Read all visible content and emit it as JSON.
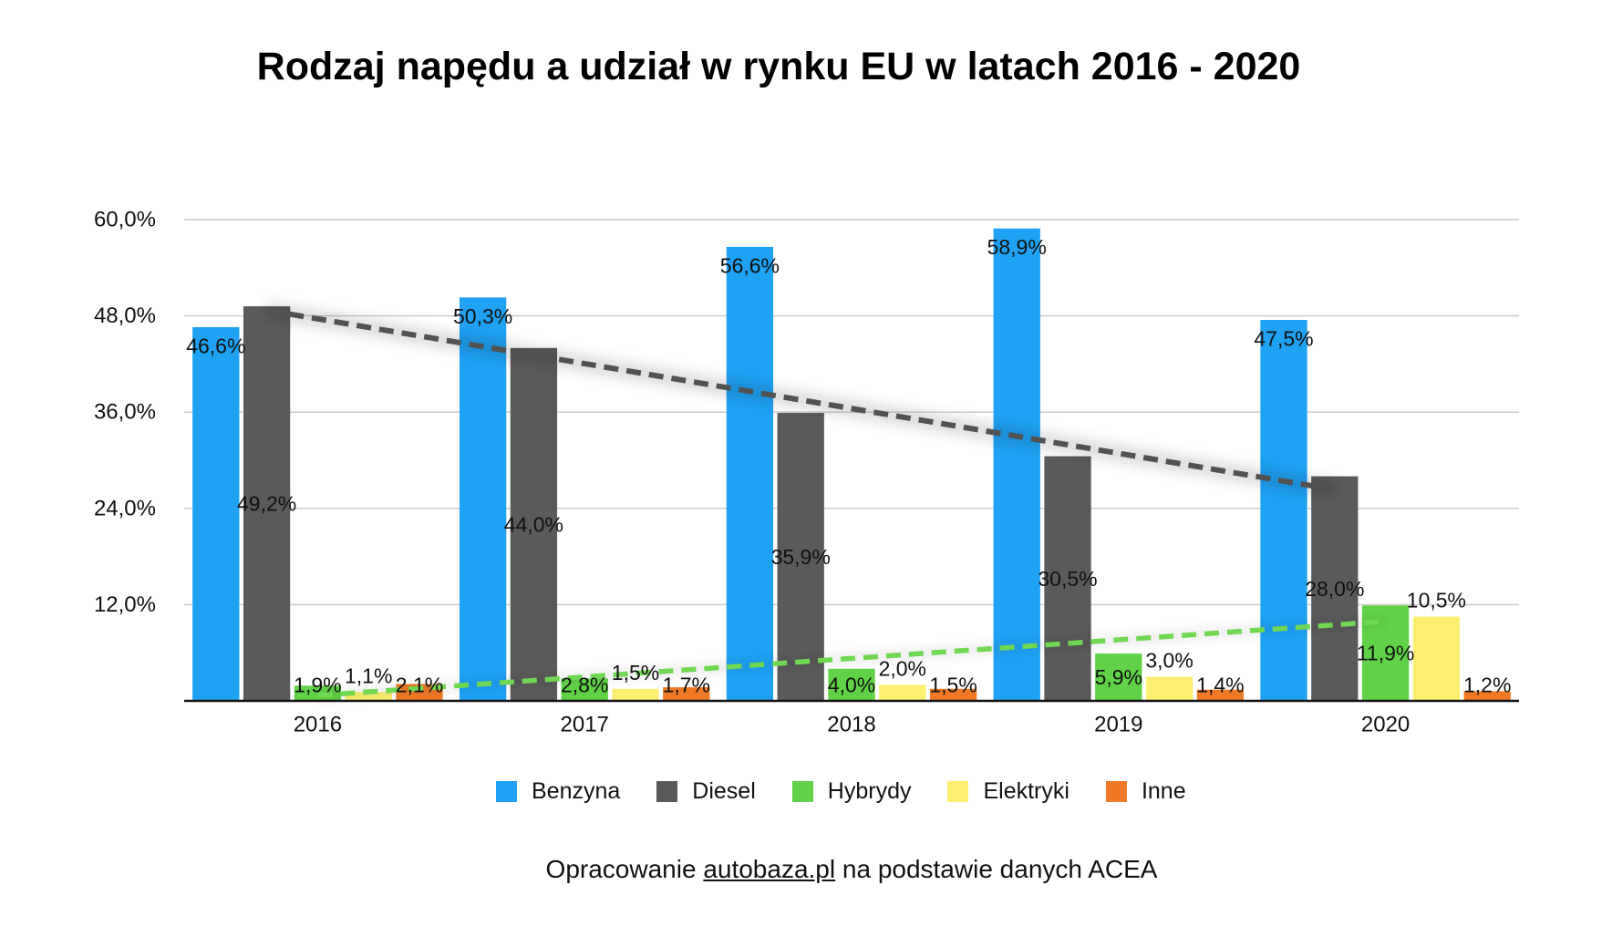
{
  "chart_data": {
    "type": "bar",
    "title": "Rodzaj napędu a udział w rynku EU w latach 2016 - 2020",
    "categories": [
      "2016",
      "2017",
      "2018",
      "2019",
      "2020"
    ],
    "series": [
      {
        "name": "Benzyna",
        "color": "#1fa1f4",
        "values": [
          46.6,
          50.3,
          56.6,
          58.9,
          47.5
        ],
        "labels": [
          "46,6%",
          "50,3%",
          "56,6%",
          "58,9%",
          "47,5%"
        ]
      },
      {
        "name": "Diesel",
        "color": "#5a5a5a",
        "values": [
          49.2,
          44.0,
          35.9,
          30.5,
          28.0
        ],
        "labels": [
          "49,2%",
          "44,0%",
          "35,9%",
          "30,5%",
          "28,0%"
        ]
      },
      {
        "name": "Hybrydy",
        "color": "#61d247",
        "values": [
          1.9,
          2.8,
          4.0,
          5.9,
          11.9
        ],
        "labels": [
          "1,9%",
          "2,8%",
          "4,0%",
          "5,9%",
          "11,9%"
        ]
      },
      {
        "name": "Elektryki",
        "color": "#fcef70",
        "values": [
          1.1,
          1.5,
          2.0,
          3.0,
          10.5
        ],
        "labels": [
          "1,1%",
          "1,5%",
          "2,0%",
          "3,0%",
          "10,5%"
        ]
      },
      {
        "name": "Inne",
        "color": "#ef7926",
        "values": [
          2.1,
          1.7,
          1.5,
          1.4,
          1.2
        ],
        "labels": [
          "2,1%",
          "1,7%",
          "1,5%",
          "1,4%",
          "1,2%"
        ]
      }
    ],
    "ylim": [
      0,
      60
    ],
    "y_ticks": [
      12,
      24,
      36,
      48,
      60
    ],
    "y_tick_labels": [
      "12,0%",
      "24,0%",
      "36,0%",
      "48,0%",
      "60,0%"
    ],
    "grid": true,
    "legend": "bottom",
    "trendlines": [
      {
        "series": "Diesel",
        "type": "linear",
        "color": "#525252"
      },
      {
        "series": "Hybrydy",
        "type": "linear",
        "color": "#6fd752"
      }
    ]
  },
  "footer": {
    "prefix": "Opracowanie",
    "link_text": "autobaza.pl",
    "suffix": "na podstawie danych ACEA"
  }
}
